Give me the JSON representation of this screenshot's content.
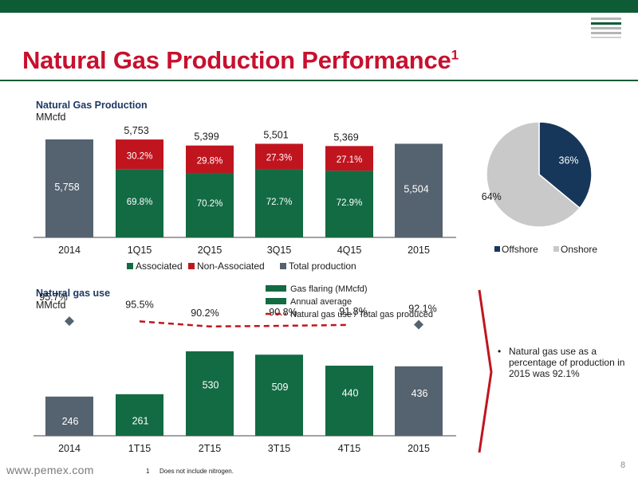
{
  "page": {
    "title": "Natural Gas Production Performance",
    "title_superscript": "1",
    "footer_url": "www.pemex.com",
    "footnote_number": "1",
    "footnote_text": "Does not include nitrogen.",
    "page_number": "8"
  },
  "colors": {
    "brand_green": "#0e5c36",
    "title_red": "#c8102e",
    "associated": "#126b43",
    "non_associated": "#c0151f",
    "total": "#556370",
    "offshore": "#16375a",
    "onshore": "#c9c9c9"
  },
  "production_chart": {
    "title": "Natural Gas Production",
    "unit": "MMcfd",
    "legend": [
      "Associated",
      "Non-Associated",
      "Total production"
    ],
    "total_labels": [
      "5,753",
      "5,399",
      "5,501",
      "5,369"
    ]
  },
  "use_chart": {
    "title": "Natural gas use",
    "unit": "MMcfd",
    "legend": [
      "Gas flaring (MMcfd)",
      "Annual average",
      "Natural gas use / Total gas produced"
    ]
  },
  "pie_chart": {
    "legend": [
      "Offshore",
      "Onshore"
    ]
  },
  "bullet": {
    "text": "Natural gas use as a percentage of production in 2015 was 92.1%"
  },
  "chart_data": [
    {
      "type": "bar",
      "title": "Natural Gas Production",
      "ylabel": "MMcfd",
      "categories": [
        "2014",
        "1Q15",
        "2Q15",
        "3Q15",
        "4Q15",
        "2015"
      ],
      "totals": [
        5758,
        5753,
        5399,
        5501,
        5369,
        5504
      ],
      "total_value_labels": [
        "5,758",
        "5,753",
        "5,399",
        "5,501",
        "5,369",
        "5,504"
      ],
      "series": [
        {
          "name": "Associated",
          "values": [
            null,
            69.8,
            70.2,
            72.7,
            72.9,
            null
          ],
          "labels": [
            "",
            "69.8%",
            "70.2%",
            "72.7%",
            "72.9%",
            ""
          ]
        },
        {
          "name": "Non-Associated",
          "values": [
            null,
            30.2,
            29.8,
            27.3,
            27.1,
            null
          ],
          "labels": [
            "",
            "30.2%",
            "29.8%",
            "27.3%",
            "27.1%",
            ""
          ]
        },
        {
          "name": "Total production",
          "values": [
            5758,
            null,
            null,
            null,
            null,
            5504
          ]
        }
      ],
      "legend_position": "bottom"
    },
    {
      "type": "pie",
      "labels": [
        "Offshore",
        "Onshore"
      ],
      "values": [
        36,
        64
      ],
      "value_labels": [
        "36%",
        "64%"
      ],
      "legend_position": "bottom"
    },
    {
      "type": "bar",
      "title": "Natural gas use",
      "ylabel": "MMcfd",
      "categories": [
        "2014",
        "1T15",
        "2T15",
        "3T15",
        "4T15",
        "2015"
      ],
      "series": [
        {
          "name": "Gas flaring (MMcfd)",
          "values": [
            246,
            261,
            530,
            509,
            440,
            436
          ],
          "labels": [
            "246",
            "261",
            "530",
            "509",
            "440",
            "436"
          ]
        },
        {
          "name": "Natural gas use / Total gas produced",
          "values": [
            95.7,
            95.5,
            90.2,
            90.8,
            91.8,
            92.1
          ],
          "labels": [
            "95.7%",
            "95.5%",
            "90.2%",
            "90.8%",
            "91.8%",
            "92.1%"
          ]
        }
      ],
      "legend_position": "top-right"
    }
  ]
}
